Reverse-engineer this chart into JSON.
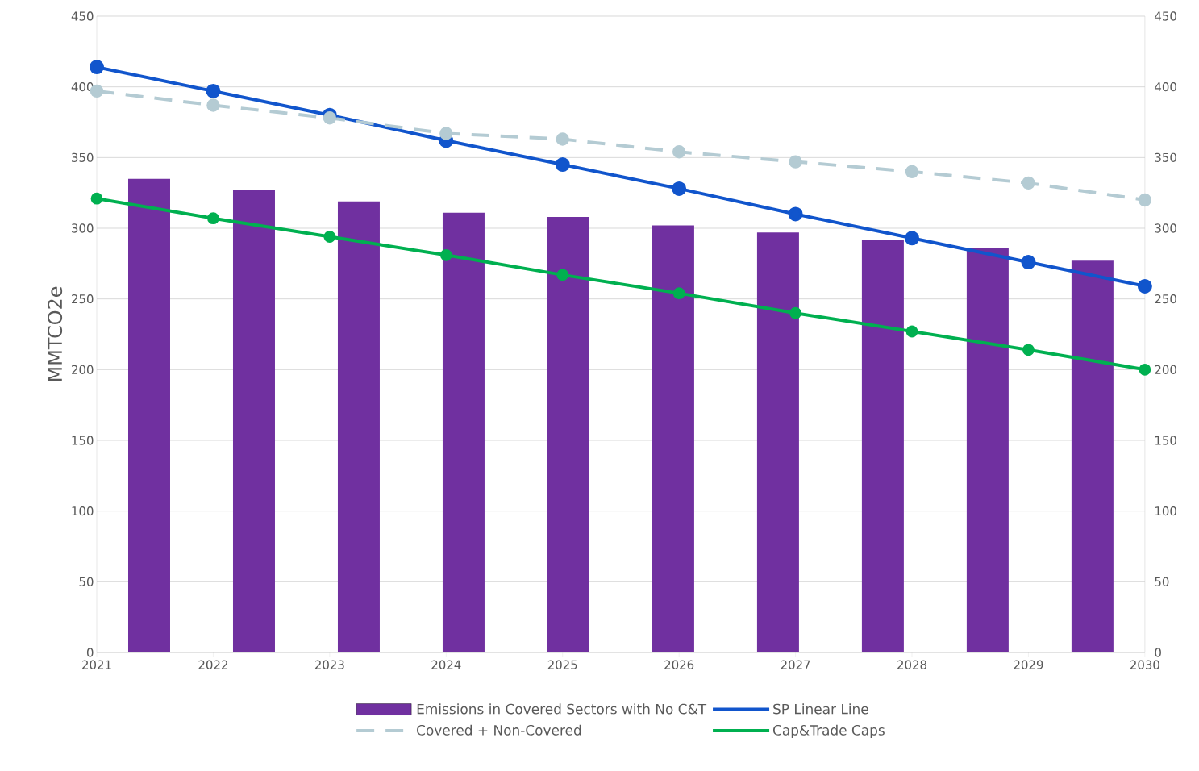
{
  "chart_data": {
    "type": "line",
    "ylabel": "MMTCO2e",
    "x": [
      2021,
      2022,
      2023,
      2024,
      2025,
      2026,
      2027,
      2028,
      2029,
      2030
    ],
    "xlim": [
      2021,
      2030
    ],
    "xticks": [
      2021,
      2022,
      2023,
      2024,
      2025,
      2026,
      2027,
      2028,
      2029,
      2030
    ],
    "ylim": [
      0,
      450
    ],
    "yticks": [
      0,
      50,
      100,
      150,
      200,
      250,
      300,
      350,
      400,
      450
    ],
    "y2lim": [
      0,
      450
    ],
    "y2ticks": [
      0,
      50,
      100,
      150,
      200,
      250,
      300,
      350,
      400,
      450
    ],
    "grid": "y",
    "legend": "bottom",
    "marker": "circle",
    "series": [
      {
        "name": "Emissions in Covered Sectors with No C&T",
        "type": "bar",
        "color": "#7030a0",
        "x": [
          2021.45,
          2022.35,
          2023.25,
          2024.15,
          2025.05,
          2025.95,
          2026.85,
          2027.75,
          2028.65,
          2029.55
        ],
        "values": [
          335,
          327,
          319,
          311,
          308,
          302,
          297,
          292,
          286,
          277
        ]
      },
      {
        "name": "SP Linear Line",
        "axis": "y2",
        "color": "#1155cc",
        "values": [
          414,
          397,
          380,
          362,
          345,
          328,
          310,
          293,
          276,
          259
        ]
      },
      {
        "name": "Covered + Non-Covered",
        "axis": "y2",
        "color": "#b4cbd3",
        "line_style": "dashed",
        "values": [
          397,
          387,
          378,
          367,
          363,
          354,
          347,
          340,
          332,
          320
        ]
      },
      {
        "name": "Cap&Trade Caps",
        "axis": "y2",
        "color": "#00b050",
        "values": [
          321,
          307,
          294,
          281,
          267,
          254,
          240,
          227,
          214,
          200
        ]
      }
    ]
  }
}
